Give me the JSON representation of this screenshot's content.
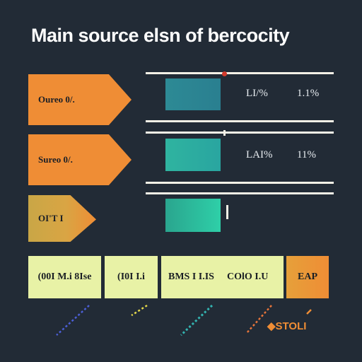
{
  "title": "Main source elsn of bercocity",
  "rows": [
    {
      "tag": "Oureo 0/.",
      "value_a": "LI/%",
      "value_b": "1.1%"
    },
    {
      "tag": "Sureo 0/.",
      "value_a": "LAI%",
      "value_b": "11%"
    },
    {
      "tag": "OI'T I",
      "value_a": "",
      "value_b": ""
    }
  ],
  "cards": [
    {
      "label": "(00I M.i 8Ise"
    },
    {
      "label": "(I0I I.i"
    },
    {
      "parts": [
        "BMS I I.IS",
        "COlO I.U"
      ]
    },
    {
      "label": "EAP"
    }
  ],
  "footer": "◆STOLI",
  "colors": {
    "background": "#222b36",
    "orange": "#ef8d35",
    "teal": "#2aa59d",
    "card": "#e8f2a6",
    "line": "#f3f0e6",
    "accent_red": "#d33a2c"
  }
}
